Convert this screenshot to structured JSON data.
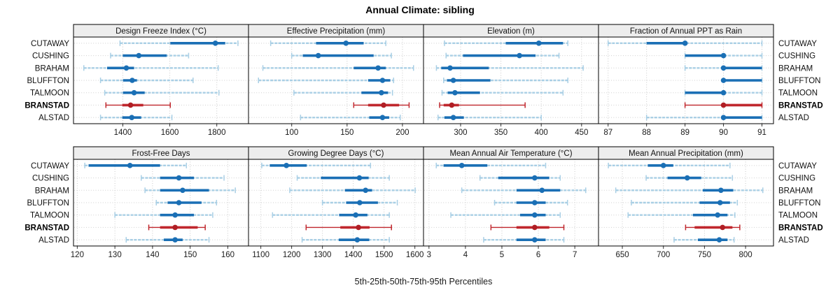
{
  "title": "Annual Climate: sibling",
  "caption": "5th-25th-50th-75th-95th Percentiles",
  "colors": {
    "blue_dark": "#1a6fb5",
    "blue_light": "#a9cfe5",
    "red_line": "#c0272d",
    "red_dot": "#b01e24",
    "grid": "#c9c9c9",
    "row_guide": "#cfcfcf",
    "header_bg": "#ededed",
    "panel_border": "#000000",
    "tick_mark": "#333333"
  },
  "chart_data": {
    "type": "trellis-percentile-dotplot",
    "percentiles": [
      "5th",
      "25th",
      "50th",
      "75th",
      "95th"
    ],
    "stations": [
      "CUTAWAY",
      "CUSHING",
      "BRAHAM",
      "BLUFFTON",
      "TALMOON",
      "BRANSTAD",
      "ALSTAD"
    ],
    "highlight_station": "BRANSTAD",
    "panels": [
      {
        "title": "Design Freeze Index (°C)",
        "grid_row": 0,
        "grid_col": 0,
        "xlim": [
          1190,
          1935
        ],
        "ticks": [
          1400,
          1600,
          1800
        ],
        "values": {
          "CUTAWAY": [
            1388,
            1602,
            1794,
            1836,
            1890
          ],
          "CUSHING": [
            1348,
            1400,
            1468,
            1587,
            1680
          ],
          "BRAHAM": [
            1234,
            1333,
            1415,
            1448,
            1806
          ],
          "BLUFFTON": [
            1305,
            1401,
            1440,
            1460,
            1699
          ],
          "TALMOON": [
            1323,
            1401,
            1448,
            1493,
            1809
          ],
          "BRANSTAD": [
            1328,
            1398,
            1433,
            1487,
            1602
          ],
          "ALSTAD": [
            1305,
            1398,
            1438,
            1478,
            1609
          ]
        }
      },
      {
        "title": "Effective Precipitation (mm)",
        "grid_row": 0,
        "grid_col": 1,
        "xlim": [
          61,
          219
        ],
        "ticks": [
          100,
          150,
          200
        ],
        "values": {
          "CUTAWAY": [
            81,
            122,
            149,
            165,
            185
          ],
          "CUSHING": [
            100,
            110,
            124,
            174,
            190
          ],
          "BRAHAM": [
            74,
            156,
            178,
            185,
            210
          ],
          "BLUFFTON": [
            70,
            169,
            182,
            189,
            192
          ],
          "TALMOON": [
            102,
            163,
            181,
            187,
            191
          ],
          "BRANSTAD": [
            156,
            169,
            183,
            197,
            206
          ],
          "ALSTAD": [
            108,
            170,
            182,
            188,
            198
          ]
        }
      },
      {
        "title": "Elevation (m)",
        "grid_row": 0,
        "grid_col": 2,
        "xlim": [
          254,
          471
        ],
        "ticks": [
          300,
          350,
          400,
          450
        ],
        "values": {
          "CUTAWAY": [
            280,
            356,
            397,
            427,
            433
          ],
          "CUSHING": [
            282,
            303,
            373,
            393,
            422
          ],
          "BRAHAM": [
            270,
            276,
            287,
            335,
            452
          ],
          "BLUFFTON": [
            279,
            283,
            291,
            337,
            433
          ],
          "TALMOON": [
            277,
            284,
            293,
            324,
            427
          ],
          "BRANSTAD": [
            274,
            279,
            289,
            298,
            380
          ],
          "ALSTAD": [
            272,
            280,
            291,
            304,
            400
          ]
        }
      },
      {
        "title": "Fraction of Annual PPT as Rain",
        "grid_row": 0,
        "grid_col": 3,
        "xlim": [
          86.75,
          91.3
        ],
        "ticks": [
          87,
          88,
          89,
          90,
          91
        ],
        "values": {
          "CUTAWAY": [
            87,
            88,
            89,
            89,
            91
          ],
          "CUSHING": [
            89,
            89,
            90,
            90,
            91
          ],
          "BRAHAM": [
            89,
            90,
            90,
            91,
            91
          ],
          "BLUFFTON": [
            90,
            90,
            90,
            91,
            91
          ],
          "TALMOON": [
            89,
            89,
            90,
            90,
            91
          ],
          "BRANSTAD": [
            89,
            90,
            90,
            91,
            91
          ],
          "ALSTAD": [
            88,
            90,
            90,
            91,
            91
          ]
        }
      },
      {
        "title": "Frost-Free Days",
        "grid_row": 1,
        "grid_col": 0,
        "xlim": [
          119,
          165.5
        ],
        "ticks": [
          120,
          130,
          140,
          150,
          160
        ],
        "values": {
          "CUTAWAY": [
            122,
            123,
            134,
            142,
            149
          ],
          "CUSHING": [
            137,
            142,
            147,
            151,
            159
          ],
          "BRAHAM": [
            138,
            142,
            148,
            155,
            162
          ],
          "BLUFFTON": [
            141,
            144,
            147,
            153,
            157
          ],
          "TALMOON": [
            130,
            142,
            146,
            151,
            156
          ],
          "BRANSTAD": [
            139,
            142,
            146,
            152,
            154
          ],
          "ALSTAD": [
            133,
            143,
            146,
            148,
            155
          ]
        }
      },
      {
        "title": "Growing Degree Days (°C)",
        "grid_row": 1,
        "grid_col": 1,
        "xlim": [
          1060,
          1628
        ],
        "ticks": [
          1100,
          1200,
          1300,
          1400,
          1500,
          1600
        ],
        "values": {
          "CUTAWAY": [
            1103,
            1129,
            1183,
            1249,
            1456
          ],
          "CUSHING": [
            1218,
            1295,
            1420,
            1450,
            1517
          ],
          "BRAHAM": [
            1194,
            1373,
            1440,
            1461,
            1601
          ],
          "BLUFFTON": [
            1300,
            1377,
            1421,
            1480,
            1543
          ],
          "TALMOON": [
            1138,
            1354,
            1408,
            1446,
            1517
          ],
          "BRANSTAD": [
            1247,
            1358,
            1417,
            1453,
            1524
          ],
          "ALSTAD": [
            1234,
            1353,
            1413,
            1452,
            1517
          ]
        }
      },
      {
        "title": "Mean Annual Air Temperature (°C)",
        "grid_row": 1,
        "grid_col": 2,
        "xlim": [
          2.85,
          7.65
        ],
        "ticks": [
          3,
          4,
          5,
          6,
          7
        ],
        "values": {
          "CUTAWAY": [
            3.2,
            3.4,
            3.9,
            4.6,
            6.2
          ],
          "CUSHING": [
            4.4,
            4.9,
            5.9,
            6.3,
            6.6
          ],
          "BRAHAM": [
            3.9,
            5.4,
            6.1,
            6.6,
            7.3
          ],
          "BLUFFTON": [
            4.8,
            5.4,
            5.9,
            6.2,
            6.8
          ],
          "TALMOON": [
            3.6,
            5.5,
            5.9,
            6.2,
            6.6
          ],
          "BRANSTAD": [
            4.7,
            5.4,
            5.9,
            6.3,
            6.7
          ],
          "ALSTAD": [
            4.5,
            5.4,
            5.9,
            6.2,
            6.7
          ]
        }
      },
      {
        "title": "Mean Annual Precipitation (mm)",
        "grid_row": 1,
        "grid_col": 3,
        "xlim": [
          621,
          834
        ],
        "ticks": [
          650,
          700,
          750,
          800
        ],
        "values": {
          "CUTAWAY": [
            633,
            681,
            700,
            712,
            781
          ],
          "CUSHING": [
            679,
            705,
            729,
            746,
            784
          ],
          "BRAHAM": [
            642,
            748,
            770,
            785,
            821
          ],
          "BLUFFTON": [
            661,
            744,
            769,
            781,
            790
          ],
          "TALMOON": [
            657,
            736,
            766,
            778,
            787
          ],
          "BRANSTAD": [
            727,
            738,
            772,
            784,
            793
          ],
          "ALSTAD": [
            713,
            742,
            768,
            778,
            786
          ]
        }
      }
    ]
  }
}
